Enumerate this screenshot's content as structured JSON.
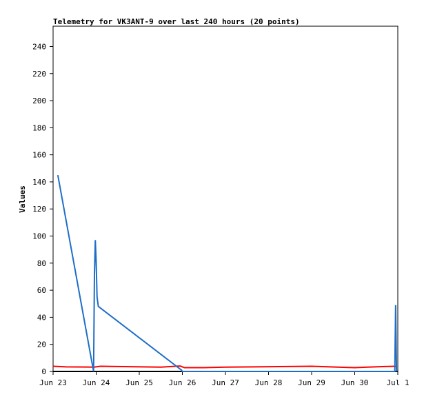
{
  "chart_data": {
    "type": "line",
    "title": "Telemetry for VK3ANT-9 over last 240 hours (20 points)",
    "y_label": "Values",
    "xlim": [
      0,
      8
    ],
    "ylim": [
      0,
      255
    ],
    "xticks": [
      {
        "value": 0,
        "label": "Jun 23"
      },
      {
        "value": 1,
        "label": "Jun 24"
      },
      {
        "value": 2,
        "label": "Jun 25"
      },
      {
        "value": 3,
        "label": "Jun 26"
      },
      {
        "value": 4,
        "label": "Jun 27"
      },
      {
        "value": 5,
        "label": "Jun 28"
      },
      {
        "value": 6,
        "label": "Jun 29"
      },
      {
        "value": 7,
        "label": "Jun 30"
      },
      {
        "value": 8,
        "label": "Jul 1"
      }
    ],
    "yticks": [
      0,
      20,
      40,
      60,
      80,
      100,
      120,
      140,
      160,
      180,
      200,
      220,
      240
    ],
    "series": [
      {
        "color": "#000000",
        "x": [
          0,
          8
        ],
        "values": [
          0,
          0
        ]
      },
      {
        "color": "#ff0000",
        "x": [
          0,
          0.3,
          0.95,
          1.1,
          1.5,
          2.5,
          2.95,
          3.05,
          3.5,
          4.0,
          6.0,
          7.0,
          7.3,
          7.7,
          7.96
        ],
        "values": [
          3.8,
          3.4,
          3.2,
          3.8,
          3.6,
          3.2,
          4,
          2.8,
          2.8,
          3.2,
          3.8,
          2.8,
          3.2,
          3.6,
          3.8
        ]
      },
      {
        "color": "#1e6ec8",
        "x": [
          0.11,
          0.94,
          0.96,
          0.98,
          1.0,
          1.02,
          1.05,
          2.98,
          3.0,
          7.93,
          7.95,
          7.97
        ],
        "values": [
          145,
          0,
          72,
          97,
          81,
          55,
          48,
          1,
          0,
          0,
          49,
          0
        ]
      }
    ]
  }
}
